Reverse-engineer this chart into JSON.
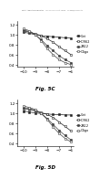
{
  "header": "Patent Application Publication    Jun. 14, 2012  Sheet 7 of 15    US 2012/0148600 A1",
  "fig5c_label": "Fig. 5C",
  "fig5d_label": "Fig. 5D",
  "xlim": [
    -10.5,
    -5.8
  ],
  "ylim": [
    0.35,
    1.28
  ],
  "yticks": [
    0.4,
    0.6,
    0.8,
    1.0,
    1.2
  ],
  "xticks": [
    -10,
    -9,
    -8,
    -7,
    -6
  ],
  "bg_color": "#ffffff",
  "plot_bg": "#ffffff",
  "legend_labels": [
    "Cet",
    "ICR62",
    "2A12",
    "Oligo"
  ],
  "fig5c": {
    "series": [
      {
        "x": [
          -10,
          -9.5,
          -9,
          -8.5,
          -8,
          -7.5,
          -7,
          -6.5,
          -6
        ],
        "y": [
          1.05,
          1.03,
          1.0,
          0.98,
          0.97,
          0.96,
          0.95,
          0.94,
          0.93
        ],
        "marker": "s",
        "color": "#222222",
        "filled": true,
        "linestyle": "-",
        "label": "Cet"
      },
      {
        "x": [
          -10,
          -9.5,
          -9,
          -8.5,
          -8,
          -7.5,
          -7,
          -6.5,
          -6
        ],
        "y": [
          1.08,
          1.05,
          1.02,
          0.98,
          0.92,
          0.85,
          0.76,
          0.68,
          0.6
        ],
        "marker": "s",
        "color": "#222222",
        "filled": false,
        "linestyle": "-",
        "label": "ICR62"
      },
      {
        "x": [
          -10,
          -9.5,
          -9,
          -8.5,
          -8,
          -7.5,
          -7,
          -6.5,
          -6
        ],
        "y": [
          1.1,
          1.06,
          1.0,
          0.9,
          0.78,
          0.68,
          0.58,
          0.5,
          0.44
        ],
        "marker": "o",
        "color": "#444444",
        "filled": true,
        "linestyle": "-",
        "label": "2A12"
      },
      {
        "x": [
          -10,
          -9.5,
          -9,
          -8.5,
          -8,
          -7.5,
          -7,
          -6.5,
          -6
        ],
        "y": [
          1.12,
          1.08,
          1.0,
          0.88,
          0.72,
          0.6,
          0.5,
          0.44,
          0.4
        ],
        "marker": "o",
        "color": "#444444",
        "filled": false,
        "linestyle": "-",
        "label": "Oligo"
      }
    ]
  },
  "fig5d": {
    "series": [
      {
        "x": [
          -10,
          -9.5,
          -9,
          -8.5,
          -8,
          -7.5,
          -7,
          -6.5,
          -6
        ],
        "y": [
          1.05,
          1.03,
          1.01,
          1.0,
          0.99,
          0.98,
          0.98,
          0.97,
          0.97
        ],
        "marker": "s",
        "color": "#222222",
        "filled": true,
        "linestyle": "-",
        "label": "Cet"
      },
      {
        "x": [
          -10,
          -9.5,
          -9,
          -8.5,
          -8,
          -7.5,
          -7,
          -6.5,
          -6
        ],
        "y": [
          1.1,
          1.08,
          1.05,
          1.02,
          0.98,
          0.92,
          0.83,
          0.74,
          0.65
        ],
        "marker": "s",
        "color": "#222222",
        "filled": false,
        "linestyle": "-",
        "label": "ICR62"
      },
      {
        "x": [
          -10,
          -9.5,
          -9,
          -8.5,
          -8,
          -7.5,
          -7,
          -6.5,
          -6
        ],
        "y": [
          1.12,
          1.1,
          1.06,
          1.0,
          0.9,
          0.78,
          0.66,
          0.56,
          0.47
        ],
        "marker": "o",
        "color": "#444444",
        "filled": true,
        "linestyle": "-",
        "label": "2A12"
      },
      {
        "x": [
          -10,
          -9.5,
          -9,
          -8.5,
          -8,
          -7.5,
          -7,
          -6.5,
          -6
        ],
        "y": [
          1.15,
          1.12,
          1.08,
          1.0,
          0.88,
          0.73,
          0.6,
          0.5,
          0.43
        ],
        "marker": "o",
        "color": "#444444",
        "filled": false,
        "linestyle": "-",
        "label": "Oligo"
      }
    ]
  }
}
